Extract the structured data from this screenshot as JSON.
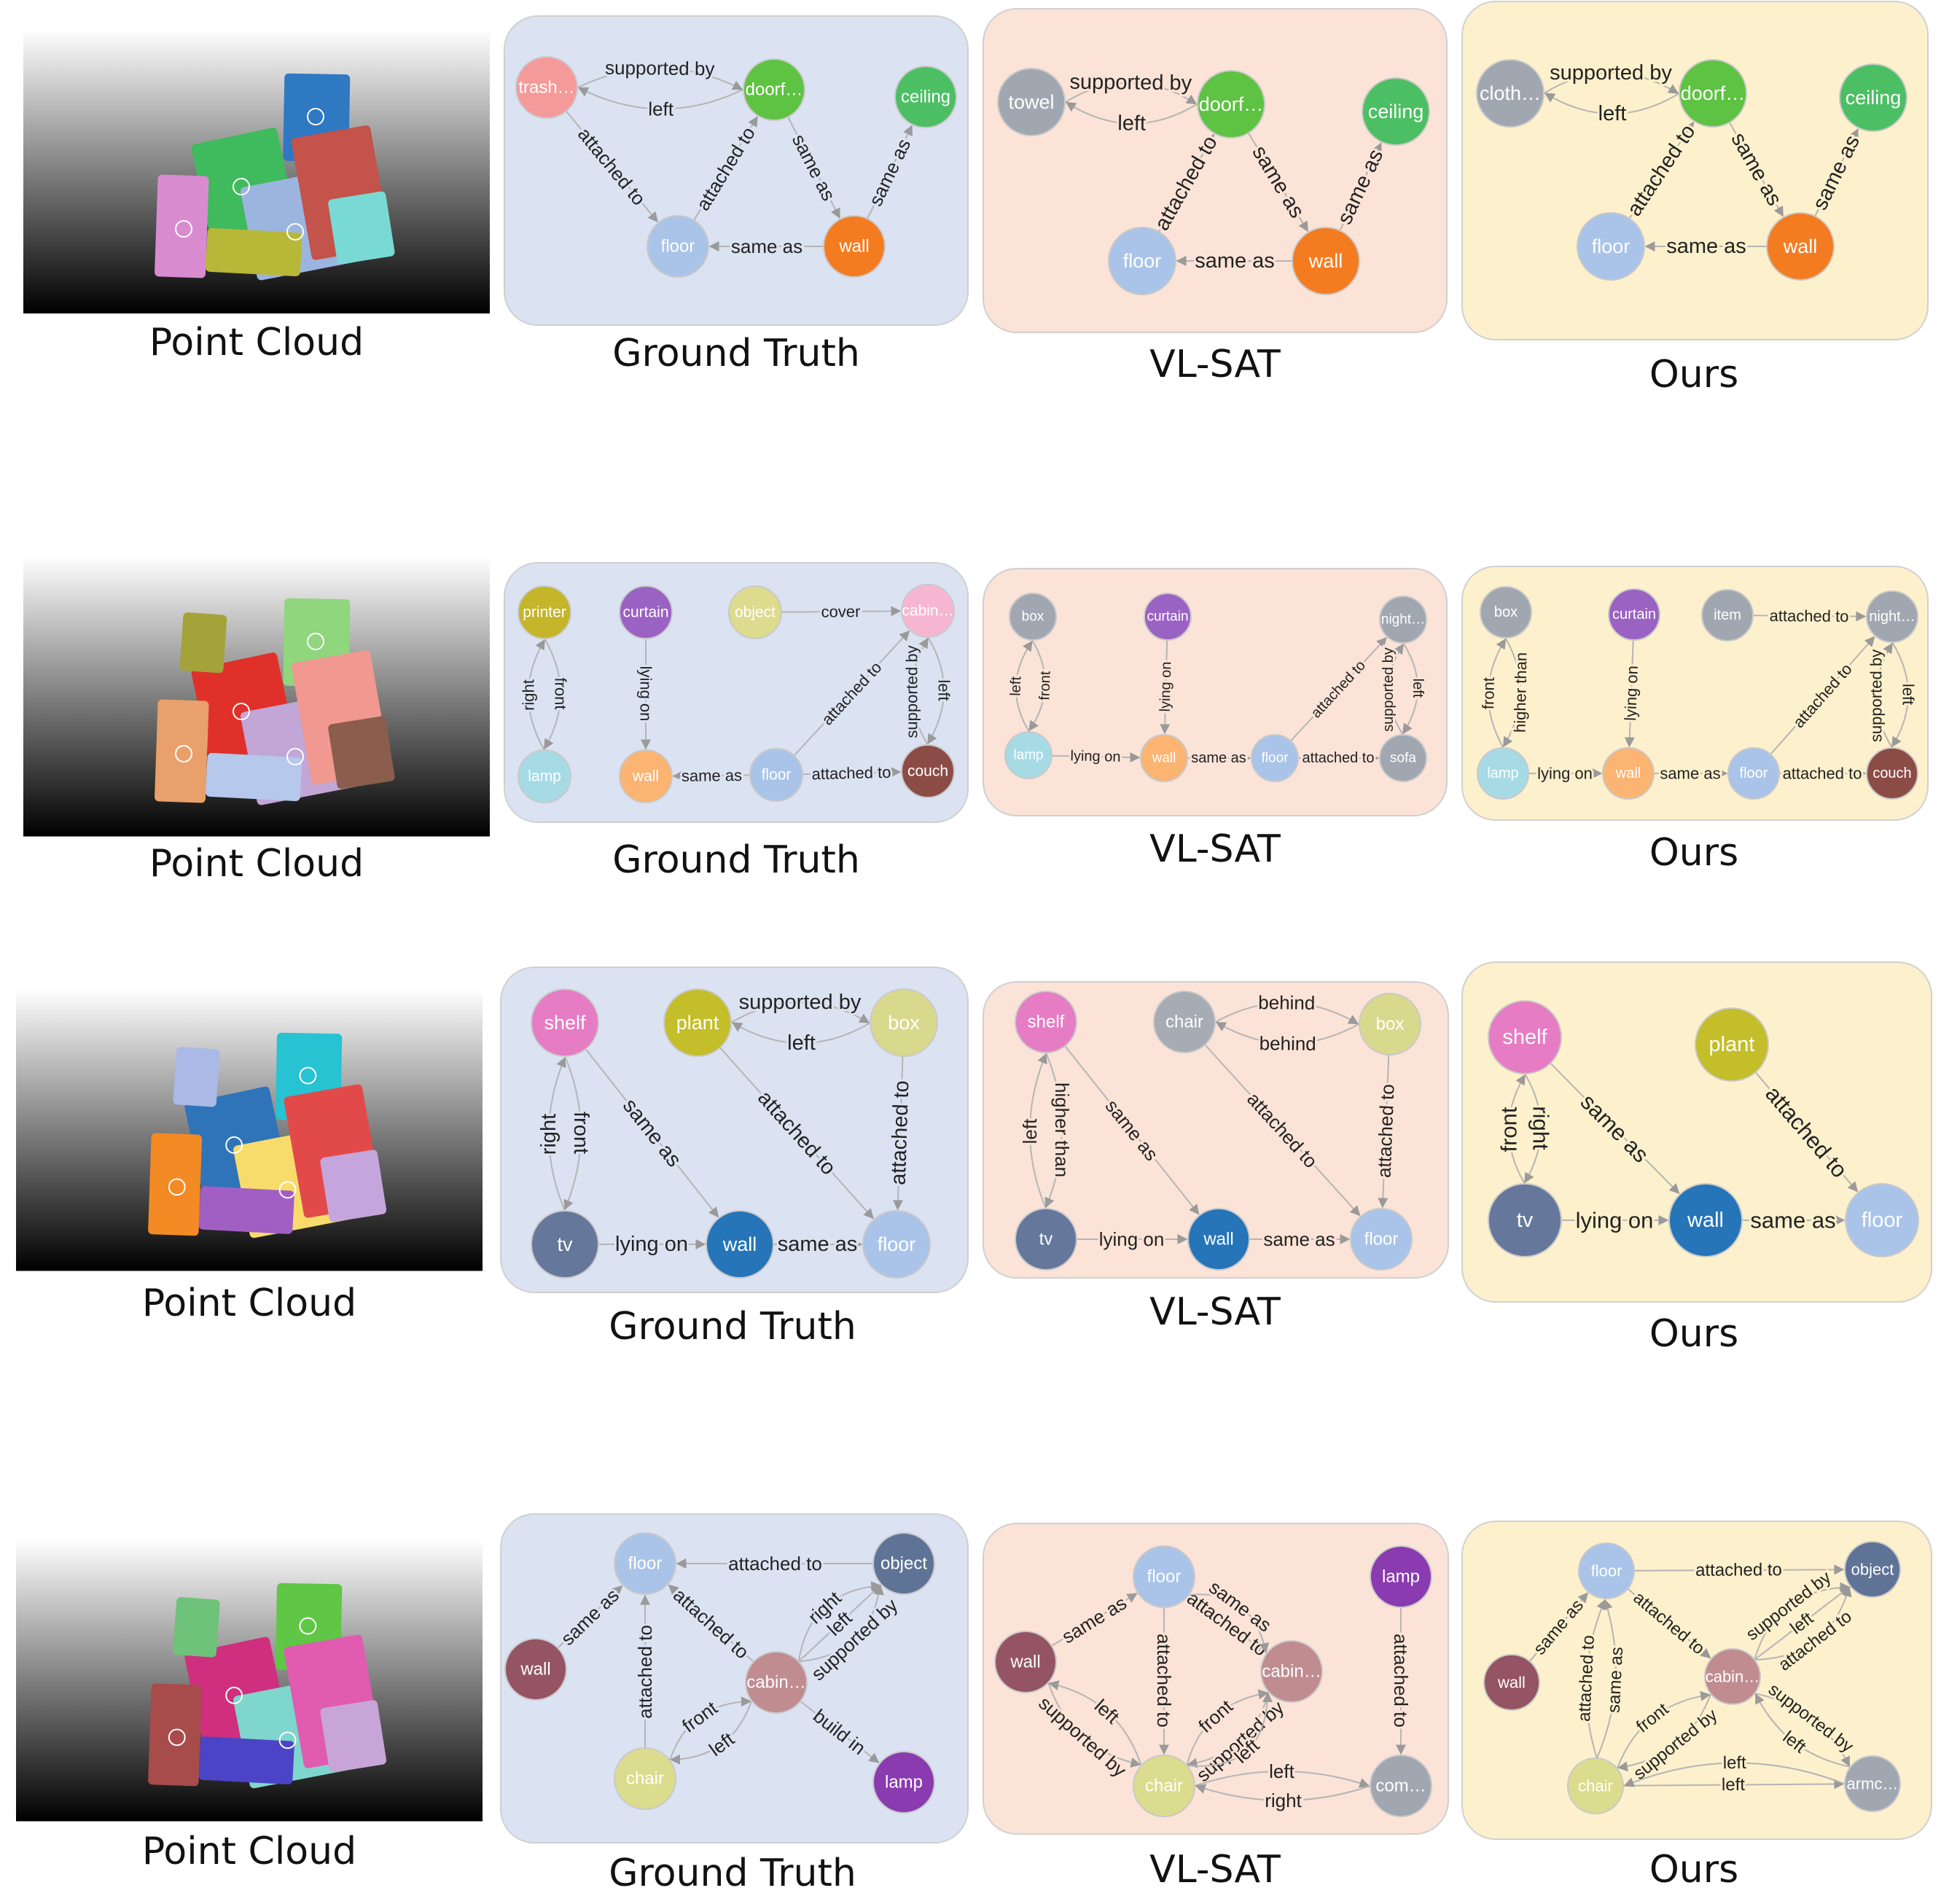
{
  "captions": {
    "point_cloud": "Point Cloud",
    "ground_truth": "Ground Truth",
    "vlsat": "VL-SAT",
    "ours": "Ours"
  },
  "colors": {
    "ground_truth_bg": "#dbe2f2",
    "vlsat_bg": "#fbe3d7",
    "ours_bg": "#fdf0cc",
    "panel_border": "#d0d0d0",
    "edge": "#b5b5b5",
    "trash_can": "#f59a9a",
    "door": "#5ec242",
    "ceiling": "#4cbf64",
    "floor": "#a9c4e8",
    "wall_orange": "#f47c20",
    "towel": "#a1a7b0",
    "clothes": "#a1a7b0",
    "printer": "#c4b52a",
    "curtain": "#9a62c2",
    "object_light": "#dcdb8e",
    "cabinet_pink": "#f6b6d2",
    "lamp_cyan": "#a6dbe6",
    "wall_peach": "#fbb472",
    "couch": "#8c4c46",
    "box_gray": "#a1a7b0",
    "nightstand": "#a1a7b0",
    "sofa": "#a1a7b0",
    "item": "#a1a7b0",
    "shelf": "#e67cc4",
    "plant": "#c3be2a",
    "box_light": "#d9d98e",
    "chair_gray": "#a6abb4",
    "tv": "#65779b",
    "wall_blue": "#2575b8",
    "object_slate": "#5e7396",
    "wall_maroon": "#945464",
    "cabinet_mauve": "#c08c90",
    "chair_light": "#dcdc8e",
    "lamp_purple": "#8a3bb0",
    "lamp_purple2": "#8a3bb0",
    "commode": "#a1a7b0",
    "armchair": "#a1a7b0"
  },
  "rows": [
    {
      "point_cloud": {
        "caption": "Point Cloud",
        "blobs": [
          "#3fba5c",
          "#2f78c2",
          "#9cb5df",
          "#d98bd0",
          "#c3534b",
          "#b8b838",
          "#79d9d4"
        ]
      },
      "ground_truth": {
        "caption": "Ground Truth",
        "nodes": [
          {
            "label": "trash…",
            "color": "#f59a9a"
          },
          {
            "label": "doorf…",
            "color": "#5ec242"
          },
          {
            "label": "ceiling",
            "color": "#4cbf64"
          },
          {
            "label": "floor",
            "color": "#a9c4e8"
          },
          {
            "label": "wall",
            "color": "#f47c20"
          }
        ],
        "edges": [
          {
            "label": "left"
          },
          {
            "label": "supported by"
          },
          {
            "label": "attached to"
          },
          {
            "label": "attached to"
          },
          {
            "label": "same as"
          },
          {
            "label": "same as"
          },
          {
            "label": "same as"
          }
        ]
      },
      "vlsat": {
        "caption": "VL-SAT",
        "nodes": [
          {
            "label": "towel",
            "color": "#a1a7b0"
          },
          {
            "label": "doorf…",
            "color": "#5ec242"
          },
          {
            "label": "ceiling",
            "color": "#4cbf64"
          },
          {
            "label": "floor",
            "color": "#a9c4e8"
          },
          {
            "label": "wall",
            "color": "#f47c20"
          }
        ],
        "edges": [
          {
            "label": "supported by"
          },
          {
            "label": "left"
          },
          {
            "label": "attached to"
          },
          {
            "label": "same as"
          },
          {
            "label": "same as"
          },
          {
            "label": "same as"
          }
        ]
      },
      "ours": {
        "caption": "Ours",
        "nodes": [
          {
            "label": "cloth…",
            "color": "#a1a7b0"
          },
          {
            "label": "doorf…",
            "color": "#5ec242"
          },
          {
            "label": "ceiling",
            "color": "#4cbf64"
          },
          {
            "label": "floor",
            "color": "#a9c4e8"
          },
          {
            "label": "wall",
            "color": "#f47c20"
          }
        ],
        "edges": [
          {
            "label": "left"
          },
          {
            "label": "supported by"
          },
          {
            "label": "attached to"
          },
          {
            "label": "same as"
          },
          {
            "label": "same as"
          },
          {
            "label": "same as"
          }
        ]
      }
    },
    {
      "point_cloud": {
        "caption": "Point Cloud",
        "blobs": [
          "#e0302a",
          "#8fd67d",
          "#c1a6d6",
          "#e9a06b",
          "#f19891",
          "#b6c8ec",
          "#8a5d4c",
          "#a3a33a"
        ]
      },
      "ground_truth": {
        "caption": "Ground Truth",
        "nodes": [
          {
            "label": "printer",
            "color": "#c4b52a"
          },
          {
            "label": "curtain",
            "color": "#9a62c2"
          },
          {
            "label": "object",
            "color": "#dcdb8e"
          },
          {
            "label": "cabin…",
            "color": "#f6b6d2"
          },
          {
            "label": "lamp",
            "color": "#a6dbe6"
          },
          {
            "label": "wall",
            "color": "#fbb472"
          },
          {
            "label": "floor",
            "color": "#a9c4e8"
          },
          {
            "label": "couch",
            "color": "#8c4c46"
          }
        ],
        "edges": [
          {
            "label": "right"
          },
          {
            "label": "front"
          },
          {
            "label": "lying on"
          },
          {
            "label": "cover"
          },
          {
            "label": "attached to"
          },
          {
            "label": "left"
          },
          {
            "label": "supported by"
          },
          {
            "label": "same as"
          },
          {
            "label": "attached to"
          }
        ]
      },
      "vlsat": {
        "caption": "VL-SAT",
        "nodes": [
          {
            "label": "box",
            "color": "#a1a7b0"
          },
          {
            "label": "curtain",
            "color": "#9a62c2"
          },
          {
            "label": "night…",
            "color": "#a1a7b0"
          },
          {
            "label": "lamp",
            "color": "#a6dbe6"
          },
          {
            "label": "wall",
            "color": "#fbb472"
          },
          {
            "label": "floor",
            "color": "#a9c4e8"
          },
          {
            "label": "sofa",
            "color": "#a1a7b0"
          }
        ],
        "edges": [
          {
            "label": "front"
          },
          {
            "label": "left"
          },
          {
            "label": "lying on"
          },
          {
            "label": "attached to"
          },
          {
            "label": "supported by"
          },
          {
            "label": "left"
          },
          {
            "label": "lying on"
          },
          {
            "label": "same as"
          },
          {
            "label": "attached to"
          }
        ]
      },
      "ours": {
        "caption": "Ours",
        "nodes": [
          {
            "label": "box",
            "color": "#a1a7b0"
          },
          {
            "label": "curtain",
            "color": "#9a62c2"
          },
          {
            "label": "item",
            "color": "#a1a7b0"
          },
          {
            "label": "night…",
            "color": "#a1a7b0"
          },
          {
            "label": "lamp",
            "color": "#a6dbe6"
          },
          {
            "label": "wall",
            "color": "#fbb472"
          },
          {
            "label": "floor",
            "color": "#a9c4e8"
          },
          {
            "label": "couch",
            "color": "#8c4c46"
          }
        ],
        "edges": [
          {
            "label": "higher than"
          },
          {
            "label": "front"
          },
          {
            "label": "lying on"
          },
          {
            "label": "attached to"
          },
          {
            "label": "attached to"
          },
          {
            "label": "left"
          },
          {
            "label": "supported by"
          },
          {
            "label": "lying on"
          },
          {
            "label": "same as"
          },
          {
            "label": "attached to"
          }
        ]
      }
    },
    {
      "point_cloud": {
        "caption": "Point Cloud",
        "blobs": [
          "#2f74b8",
          "#27c3d2",
          "#f7dc6c",
          "#f48a23",
          "#e24a4a",
          "#a15fc4",
          "#c5a6dc",
          "#aab9e5"
        ]
      },
      "ground_truth": {
        "caption": "Ground Truth",
        "nodes": [
          {
            "label": "shelf",
            "color": "#e67cc4"
          },
          {
            "label": "plant",
            "color": "#c3be2a"
          },
          {
            "label": "box",
            "color": "#d9d98e"
          },
          {
            "label": "tv",
            "color": "#65779b"
          },
          {
            "label": "wall",
            "color": "#2575b8"
          },
          {
            "label": "floor",
            "color": "#a9c4e8"
          }
        ],
        "edges": [
          {
            "label": "supported by"
          },
          {
            "label": "left"
          },
          {
            "label": "right"
          },
          {
            "label": "front"
          },
          {
            "label": "same as"
          },
          {
            "label": "attached to"
          },
          {
            "label": "attached to"
          },
          {
            "label": "lying on"
          },
          {
            "label": "same as"
          }
        ]
      },
      "vlsat": {
        "caption": "VL-SAT",
        "nodes": [
          {
            "label": "shelf",
            "color": "#e67cc4"
          },
          {
            "label": "chair",
            "color": "#a6abb4"
          },
          {
            "label": "box",
            "color": "#d9d98e"
          },
          {
            "label": "tv",
            "color": "#65779b"
          },
          {
            "label": "wall",
            "color": "#2575b8"
          },
          {
            "label": "floor",
            "color": "#a9c4e8"
          }
        ],
        "edges": [
          {
            "label": "behind"
          },
          {
            "label": "behind"
          },
          {
            "label": "left"
          },
          {
            "label": "higher than"
          },
          {
            "label": "same as"
          },
          {
            "label": "attached to"
          },
          {
            "label": "attached to"
          },
          {
            "label": "lying on"
          },
          {
            "label": "same as"
          }
        ]
      },
      "ours": {
        "caption": "Ours",
        "nodes": [
          {
            "label": "shelf",
            "color": "#e67cc4"
          },
          {
            "label": "plant",
            "color": "#c3be2a"
          },
          {
            "label": "tv",
            "color": "#65779b"
          },
          {
            "label": "wall",
            "color": "#2575b8"
          },
          {
            "label": "floor",
            "color": "#a9c4e8"
          }
        ],
        "edges": [
          {
            "label": "front"
          },
          {
            "label": "right"
          },
          {
            "label": "same as"
          },
          {
            "label": "attached to"
          },
          {
            "label": "lying on"
          },
          {
            "label": "same as"
          }
        ]
      }
    },
    {
      "point_cloud": {
        "caption": "Point Cloud",
        "blobs": [
          "#cf2f7e",
          "#5fc745",
          "#7fd6cc",
          "#a84b4b",
          "#e15bb0",
          "#4b44c6",
          "#c7a5d8",
          "#6ec279"
        ]
      },
      "ground_truth": {
        "caption": "Ground Truth",
        "nodes": [
          {
            "label": "floor",
            "color": "#a9c4e8"
          },
          {
            "label": "object",
            "color": "#5e7396"
          },
          {
            "label": "wall",
            "color": "#945464"
          },
          {
            "label": "cabin…",
            "color": "#c08c90"
          },
          {
            "label": "chair",
            "color": "#dcdc8e"
          },
          {
            "label": "lamp",
            "color": "#8a3bb0"
          }
        ],
        "edges": [
          {
            "label": "attached to"
          },
          {
            "label": "same as"
          },
          {
            "label": "attached to"
          },
          {
            "label": "attached to"
          },
          {
            "label": "right"
          },
          {
            "label": "left"
          },
          {
            "label": "supported by"
          },
          {
            "label": "front"
          },
          {
            "label": "left"
          },
          {
            "label": "build in"
          }
        ]
      },
      "vlsat": {
        "caption": "VL-SAT",
        "nodes": [
          {
            "label": "floor",
            "color": "#a9c4e8"
          },
          {
            "label": "lamp",
            "color": "#8a3bb0"
          },
          {
            "label": "wall",
            "color": "#945464"
          },
          {
            "label": "cabin…",
            "color": "#c08c90"
          },
          {
            "label": "chair",
            "color": "#dcdc8e"
          },
          {
            "label": "com…",
            "color": "#a1a7b0"
          }
        ],
        "edges": [
          {
            "label": "same as"
          },
          {
            "label": "attached to"
          },
          {
            "label": "same as"
          },
          {
            "label": "attached to"
          },
          {
            "label": "attached to"
          },
          {
            "label": "supported by"
          },
          {
            "label": "left"
          },
          {
            "label": "front"
          },
          {
            "label": "supported by"
          },
          {
            "label": "left"
          },
          {
            "label": "left"
          },
          {
            "label": "right"
          }
        ]
      },
      "ours": {
        "caption": "Ours",
        "nodes": [
          {
            "label": "floor",
            "color": "#a9c4e8"
          },
          {
            "label": "object",
            "color": "#5e7396"
          },
          {
            "label": "wall",
            "color": "#945464"
          },
          {
            "label": "cabin…",
            "color": "#c08c90"
          },
          {
            "label": "chair",
            "color": "#dcdc8e"
          },
          {
            "label": "armc…",
            "color": "#a1a7b0"
          }
        ],
        "edges": [
          {
            "label": "attached to"
          },
          {
            "label": "same as"
          },
          {
            "label": "attached to"
          },
          {
            "label": "same as"
          },
          {
            "label": "attached to"
          },
          {
            "label": "supported by"
          },
          {
            "label": "left"
          },
          {
            "label": "attached to"
          },
          {
            "label": "supported by"
          },
          {
            "label": "left"
          },
          {
            "label": "front"
          },
          {
            "label": "supported by"
          },
          {
            "label": "left"
          },
          {
            "label": "left"
          }
        ]
      }
    }
  ]
}
